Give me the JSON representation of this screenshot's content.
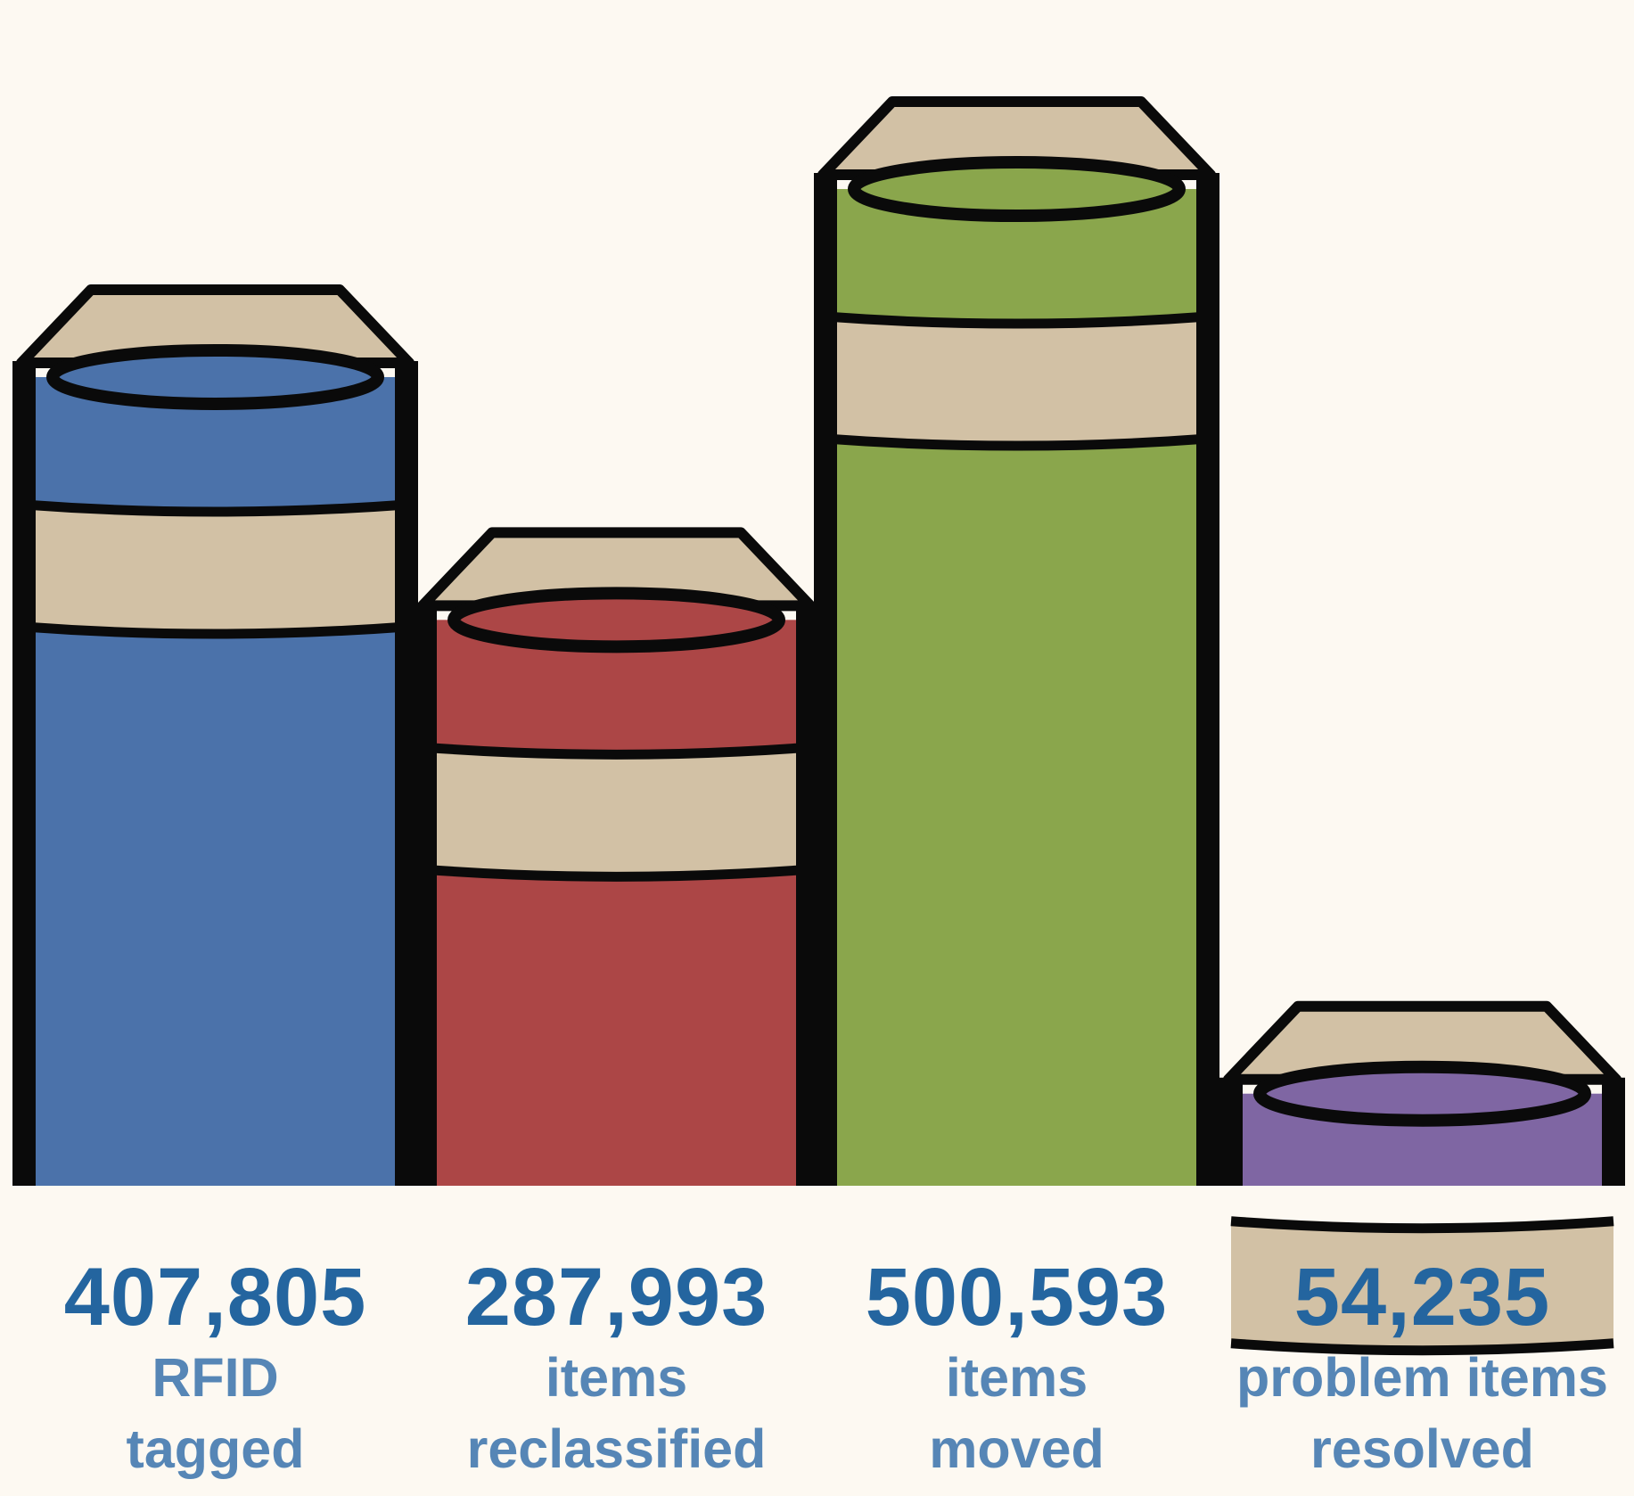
{
  "chart_data": {
    "type": "bar",
    "title": "",
    "xlabel": "",
    "ylabel": "",
    "ylim": [
      0,
      560000
    ],
    "grid": false,
    "legend": "none",
    "categories": [
      "RFID tagged",
      "items reclassified",
      "items moved",
      "problem items resolved"
    ],
    "values": [
      407805,
      287993,
      500593,
      54235
    ],
    "bars": [
      {
        "value_label": "407,805",
        "label_lines": [
          "RFID",
          "tagged"
        ],
        "color": "#4b72aa"
      },
      {
        "value_label": "287,993",
        "label_lines": [
          "items",
          "reclassified"
        ],
        "color": "#ac4646"
      },
      {
        "value_label": "500,593",
        "label_lines": [
          "items",
          "moved"
        ],
        "color": "#8aa64c"
      },
      {
        "value_label": "54,235",
        "label_lines": [
          "problem items",
          "resolved"
        ],
        "color": "#7f66a3"
      }
    ],
    "band_color": "#d2c1a5",
    "outline_color": "#0a0a0a"
  }
}
